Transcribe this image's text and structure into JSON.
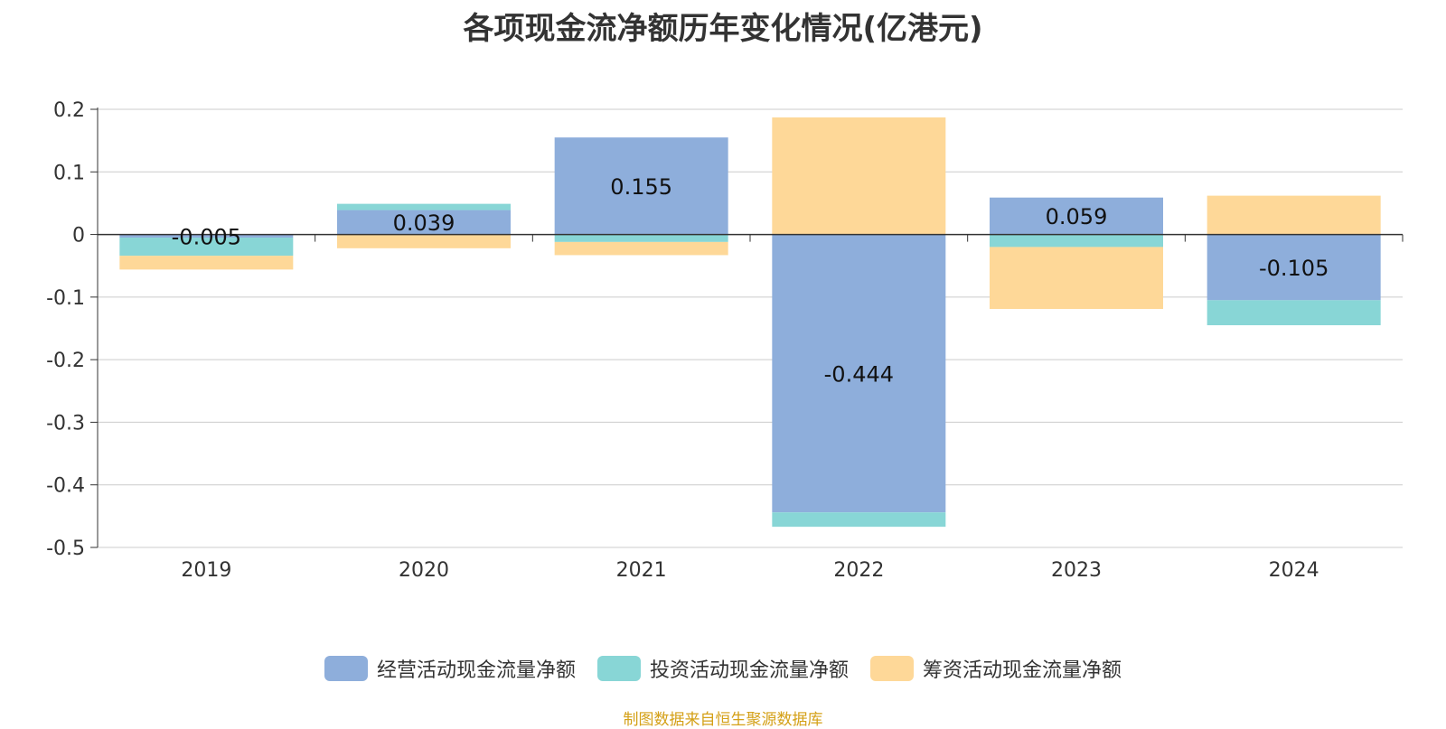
{
  "title": "各项现金流净额历年变化情况(亿港元)",
  "source_note": "制图数据来自恒生聚源数据库",
  "colors": {
    "operating": "#8eaedb",
    "investing": "#88d6d6",
    "financing": "#fed898",
    "grid": "#cccccc",
    "axis": "#333333",
    "text": "#333333"
  },
  "legend": [
    {
      "key": "operating",
      "label": "经营活动现金流量净额"
    },
    {
      "key": "investing",
      "label": "投资活动现金流量净额"
    },
    {
      "key": "financing",
      "label": "筹资活动现金流量净额"
    }
  ],
  "chart_data": {
    "type": "bar",
    "stacked": true,
    "title": "各项现金流净额历年变化情况(亿港元)",
    "categories": [
      "2019",
      "2020",
      "2021",
      "2022",
      "2023",
      "2024"
    ],
    "series": [
      {
        "name": "经营活动现金流量净额",
        "key": "operating",
        "values": [
          -0.005,
          0.039,
          0.155,
          -0.444,
          0.059,
          -0.105
        ]
      },
      {
        "name": "投资活动现金流量净额",
        "key": "investing",
        "values": [
          -0.029,
          0.01,
          -0.012,
          -0.023,
          -0.02,
          -0.04
        ]
      },
      {
        "name": "筹资活动现金流量净额",
        "key": "financing",
        "values": [
          -0.022,
          -0.022,
          -0.021,
          0.187,
          -0.099,
          0.062
        ]
      }
    ],
    "data_labels_series": "经营活动现金流量净额",
    "data_labels": [
      "-0.005",
      "0.039",
      "0.155",
      "-0.444",
      "0.059",
      "-0.105"
    ],
    "yticks": [
      0.2,
      0.1,
      0,
      -0.1,
      -0.2,
      -0.3,
      -0.4,
      -0.5
    ],
    "ytick_labels": [
      "0.2",
      "0.1",
      "0",
      "-0.1",
      "-0.2",
      "-0.3",
      "-0.4",
      "-0.5"
    ],
    "ylim": [
      -0.5,
      0.2
    ],
    "grid": true,
    "legend_position": "bottom"
  }
}
